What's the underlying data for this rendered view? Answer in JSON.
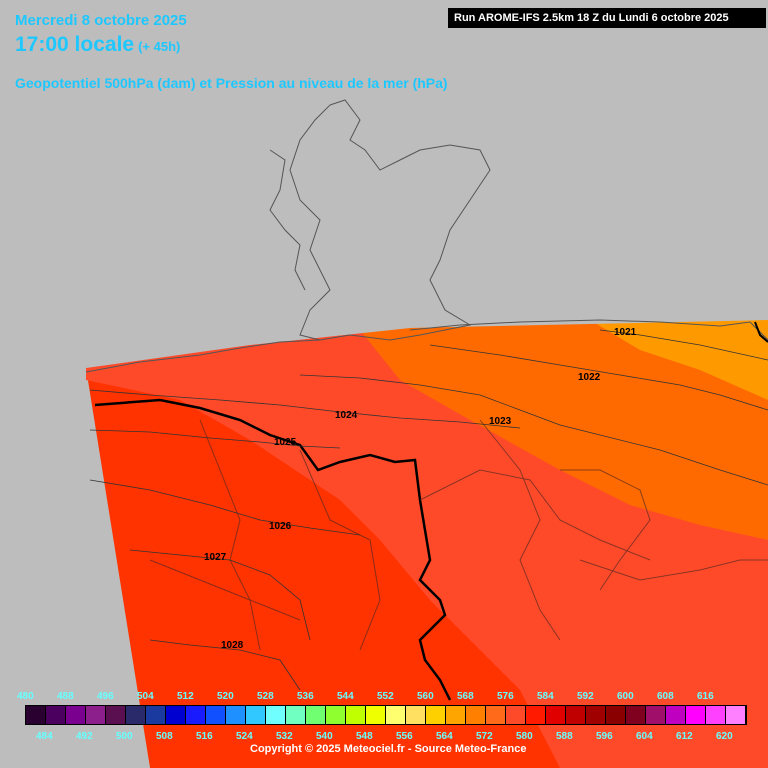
{
  "header": {
    "date_line": "Mercredi 8 octobre 2025",
    "time_line": "17:00 locale",
    "lead": "(+ 45h)",
    "field_title": "Geopotentiel 500hPa (dam) et Pression au niveau de la mer (hPa)",
    "run_info": "Run AROME-IFS 2.5km 18 Z du Lundi 6 octobre 2025"
  },
  "isobars": {
    "i1021": "1021",
    "i1022": "1022",
    "i1023": "1023",
    "i1024": "1024",
    "i1025": "1025",
    "i1026": "1026",
    "i1027": "1027",
    "i1028": "1028"
  },
  "legend": {
    "top_labels": [
      "480",
      "488",
      "496",
      "504",
      "512",
      "520",
      "528",
      "536",
      "544",
      "552",
      "560",
      "568",
      "576",
      "584",
      "592",
      "600",
      "608",
      "616"
    ],
    "bottom_labels": [
      "484",
      "492",
      "500",
      "508",
      "516",
      "524",
      "532",
      "540",
      "548",
      "556",
      "564",
      "572",
      "580",
      "588",
      "596",
      "604",
      "612",
      "620"
    ],
    "colors": [
      "#2a0030",
      "#4b0060",
      "#7a0090",
      "#8c1f8c",
      "#5a1050",
      "#2a2a6a",
      "#1a3aa0",
      "#0000d0",
      "#1a1aff",
      "#1050ff",
      "#1e90ff",
      "#30c8ff",
      "#70ffff",
      "#70ffc0",
      "#70ff70",
      "#90ff30",
      "#c0ff00",
      "#f0ff00",
      "#ffff70",
      "#ffe060",
      "#ffd000",
      "#ffa500",
      "#ff8000",
      "#ff6a1a",
      "#ff4a2a",
      "#ff1a00",
      "#e00000",
      "#c00000",
      "#a00000",
      "#8a0000",
      "#800020",
      "#a0106a",
      "#c000c0",
      "#ff00ff",
      "#ff40ff",
      "#ff80ff"
    ]
  },
  "copyright": "Copyright © 2025 Meteociel.fr - Source Meteo-France"
}
